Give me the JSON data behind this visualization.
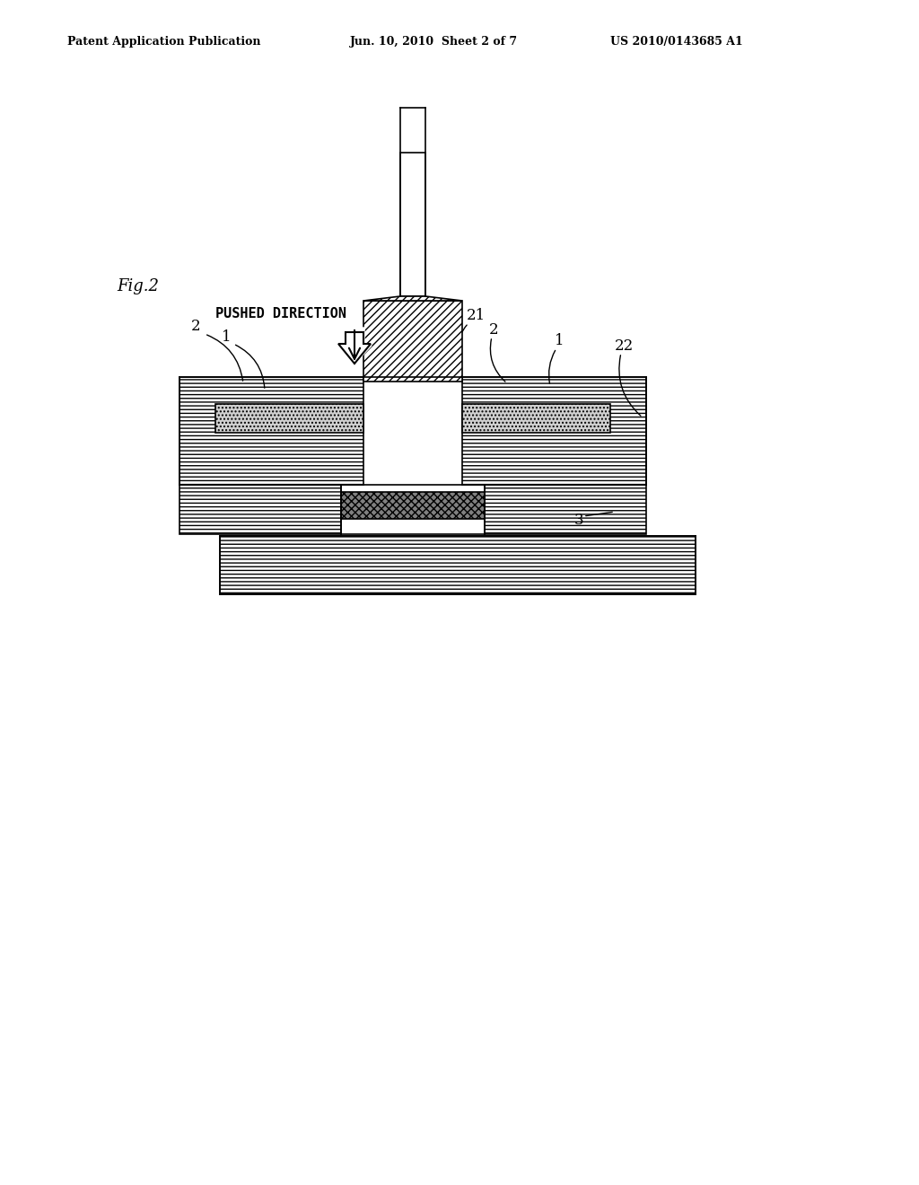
{
  "bg_color": "#ffffff",
  "line_color": "#000000",
  "header_text": "Patent Application Publication",
  "header_date": "Jun. 10, 2010  Sheet 2 of 7",
  "header_patent": "US 2010/0143685 A1",
  "fig_label": "Fig.2",
  "pushed_direction_label": "PUSHED DIRECTION",
  "labels": [
    "2",
    "1",
    "21",
    "2",
    "1",
    "22",
    "3"
  ],
  "hatch_diagonal": "////",
  "hatch_dots": "....",
  "hatch_horizontal": "----"
}
